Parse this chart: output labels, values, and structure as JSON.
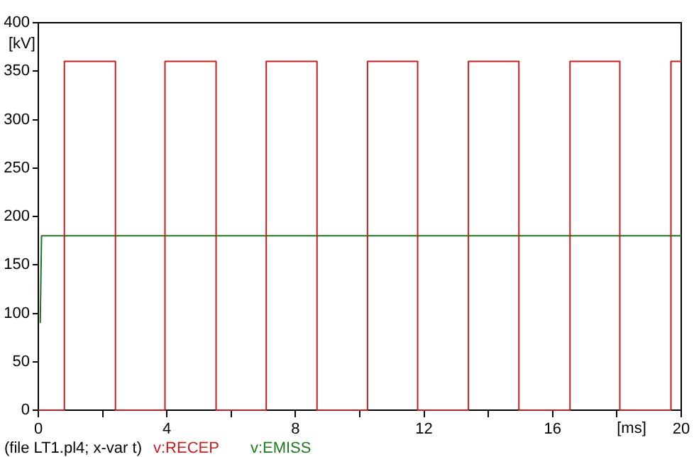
{
  "chart_data": {
    "type": "step",
    "xlabel": "[ms]",
    "ylabel": "[kV]",
    "annotations": [
      "(file LT1.pl4; x-var t)"
    ],
    "xlim": [
      0,
      20
    ],
    "xticks": [
      0,
      {
        "value": 2,
        "label": null
      },
      4,
      {
        "value": 6,
        "label": null
      },
      8,
      {
        "value": 10,
        "label": null
      },
      12,
      {
        "value": 14,
        "label": null
      },
      16,
      {
        "value": 18,
        "label": null
      },
      20
    ],
    "ylim": [
      0,
      400
    ],
    "yticks": [
      0,
      50,
      100,
      150,
      200,
      250,
      300,
      350,
      400
    ],
    "grid": false,
    "legend": "bottom",
    "marker": "none",
    "line_style": "solid",
    "series": [
      {
        "name": "v:RECEP",
        "color": "#c81e1e",
        "x": [
          0,
          0.81,
          2.4,
          3.94,
          5.53,
          7.09,
          8.67,
          10.24,
          11.8,
          13.38,
          14.95,
          16.54,
          18.09,
          19.68,
          20
        ],
        "values": [
          0,
          360,
          0,
          360,
          0,
          360,
          0,
          360,
          0,
          360,
          0,
          360,
          0,
          360,
          360
        ]
      },
      {
        "name": "v:EMISS",
        "type": "line",
        "color": "#1e7a1e",
        "x": [
          0.06,
          0.1,
          20
        ],
        "values": [
          90,
          180,
          180
        ]
      }
    ]
  }
}
